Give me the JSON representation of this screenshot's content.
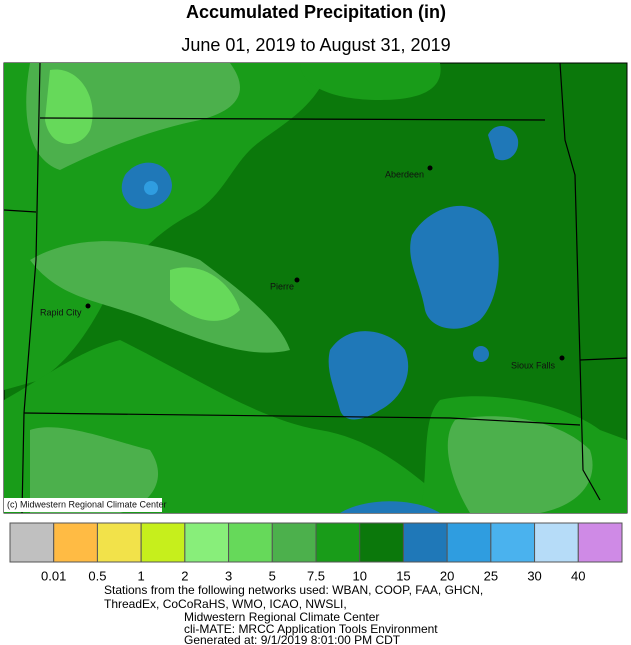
{
  "header": {
    "title": "Accumulated Precipitation (in)",
    "subtitle": "June 01, 2019 to August 31, 2019"
  },
  "map": {
    "cities": [
      {
        "label": "Aberdeen"
      },
      {
        "label": "Pierre"
      },
      {
        "label": "Rapid City"
      },
      {
        "label": "Sioux Falls"
      }
    ],
    "copyright": "(c) Midwestern Regional Climate Center"
  },
  "legend": {
    "colors": [
      "#c0c0c0",
      "#ffbb44",
      "#f2e24a",
      "#c6ef1c",
      "#88ee7a",
      "#66d95a",
      "#4cb04c",
      "#199c19",
      "#0b780b",
      "#1f78b8",
      "#2f9de0",
      "#4ab2ee",
      "#b6dcf8",
      "#cf8ae6"
    ],
    "labels": [
      "0.01",
      "0.5",
      "1",
      "2",
      "3",
      "5",
      "7.5",
      "10",
      "15",
      "20",
      "25",
      "30",
      "40"
    ]
  },
  "footer": {
    "lines": [
      "Stations from the following networks used: WBAN, COOP, FAA, GHCN,",
      "ThreadEx, CoCoRaHS, WMO, ICAO, NWSLI,",
      "Midwestern Regional Climate Center",
      "cli-MATE: MRCC Application Tools Environment",
      "Generated at: 9/1/2019 8:01:00 PM CDT"
    ]
  }
}
